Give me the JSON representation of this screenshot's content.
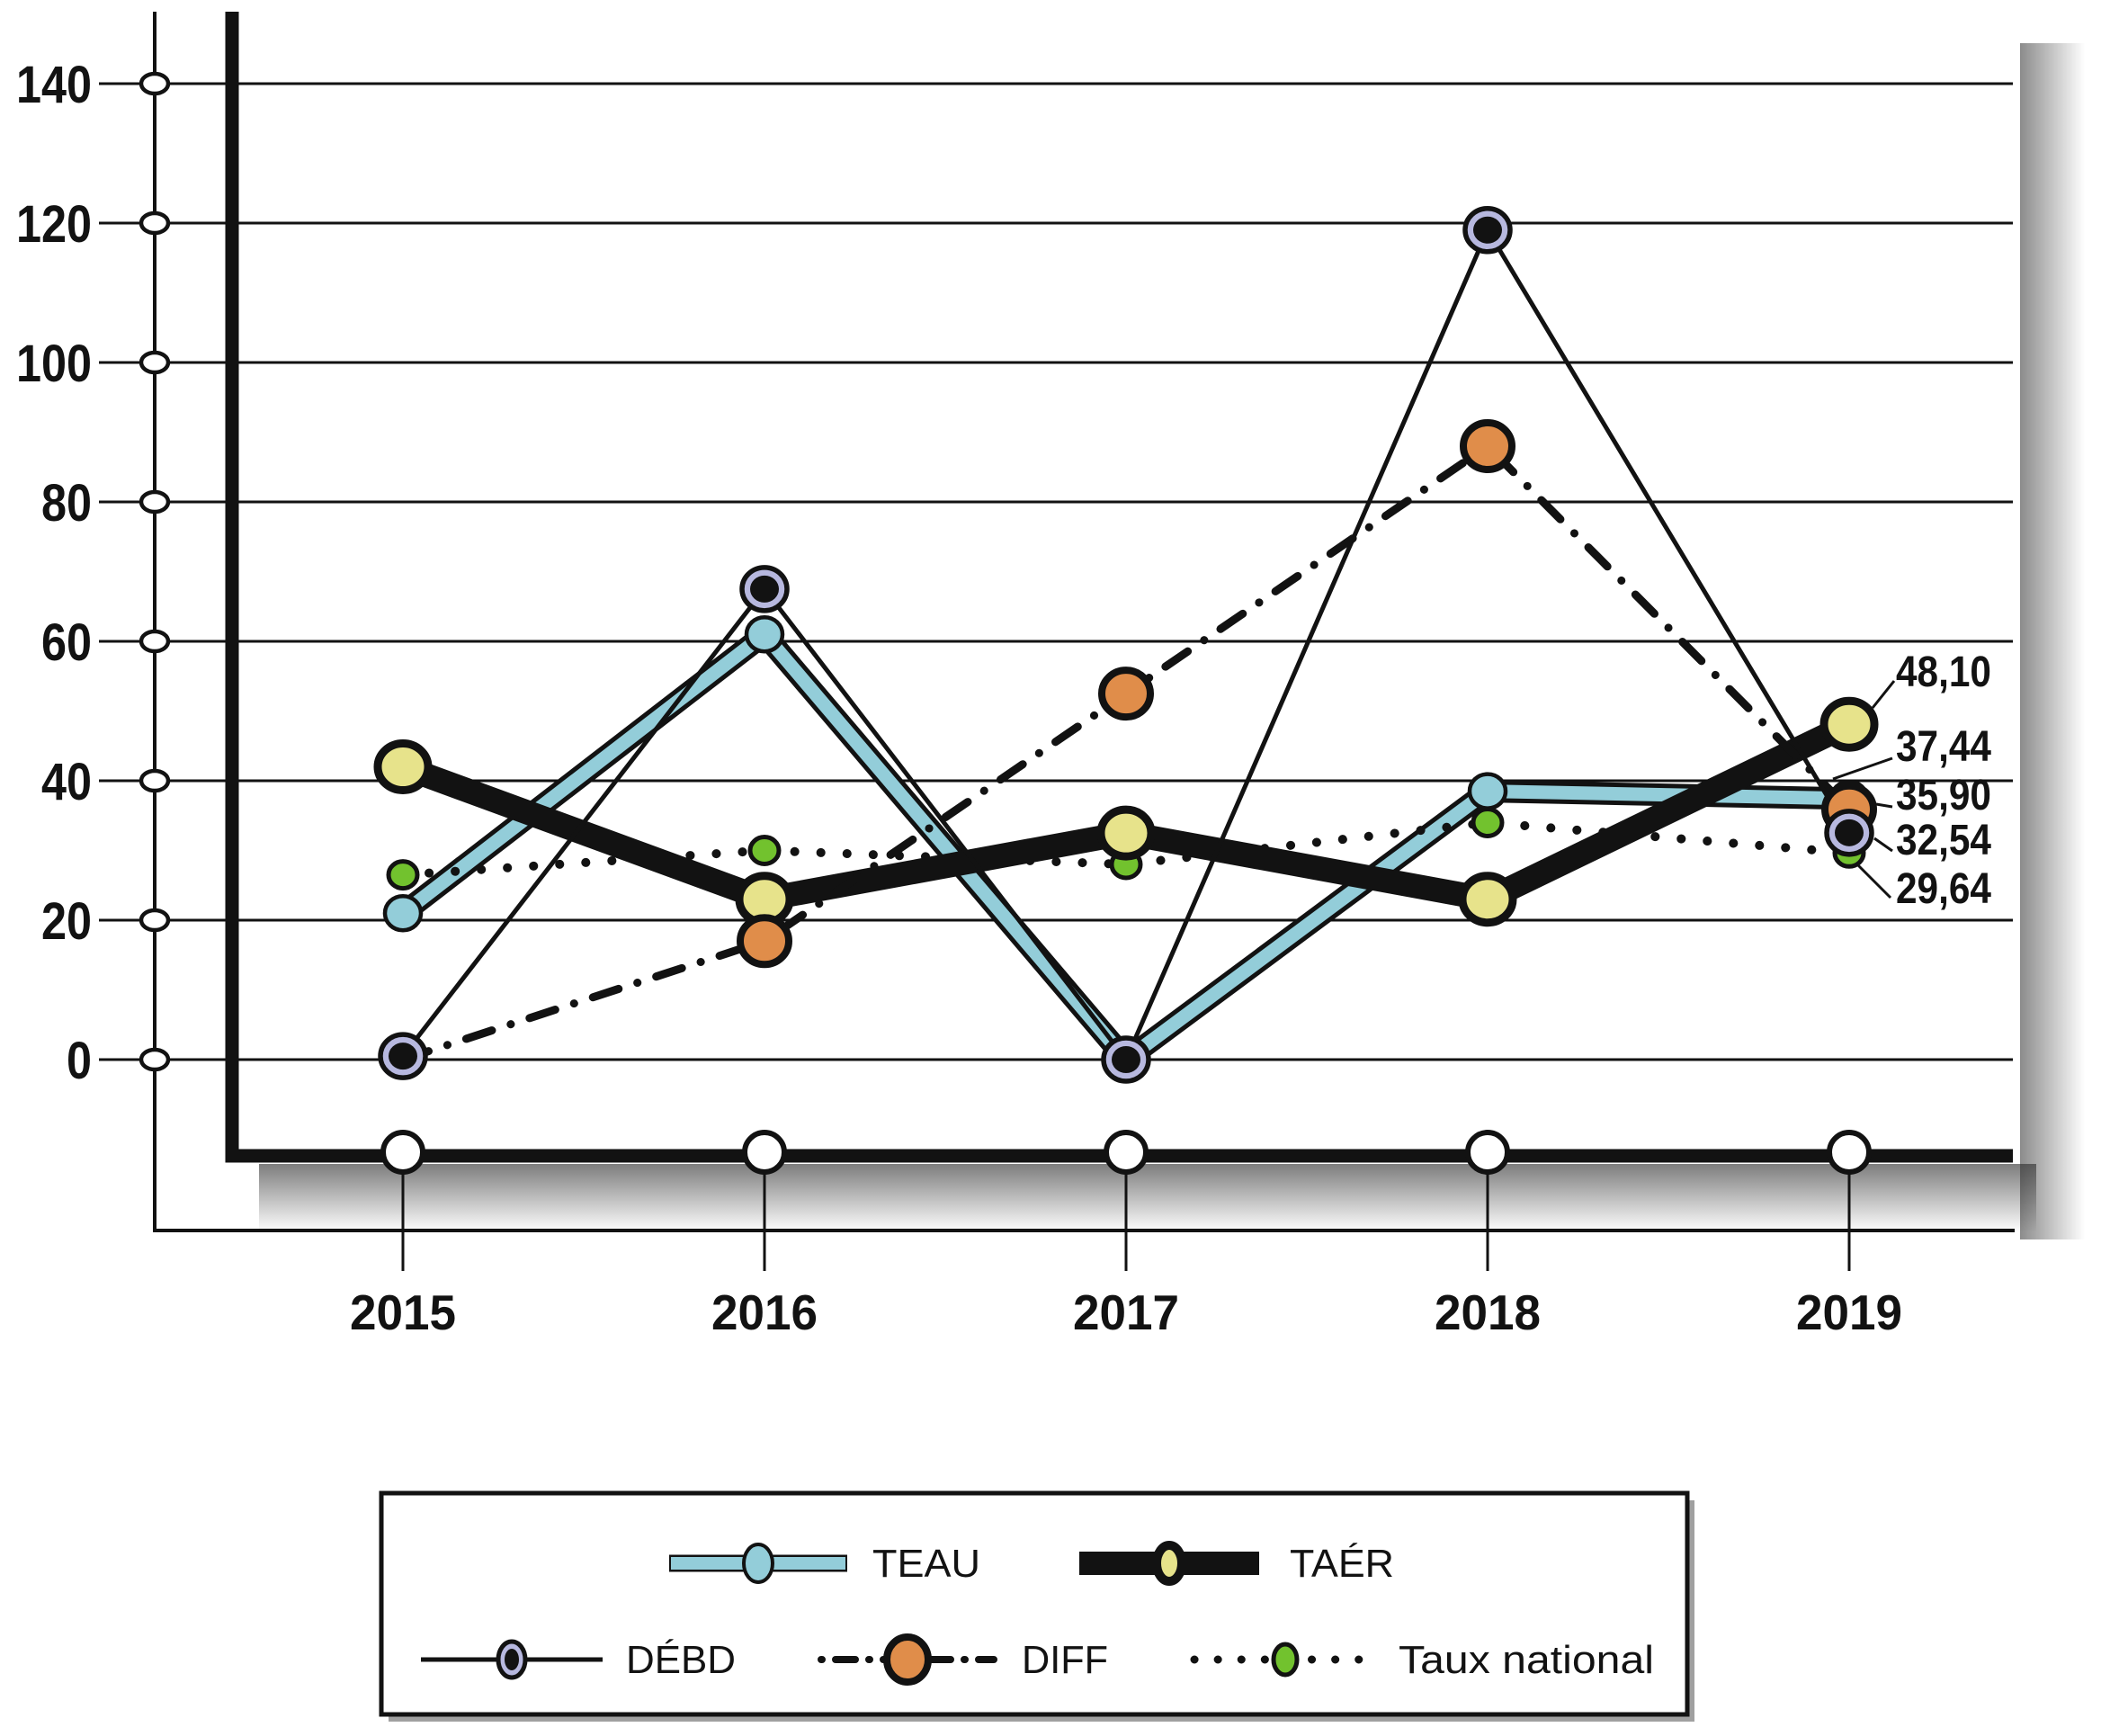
{
  "figure": {
    "background": "#ffffff",
    "ink_color": "#121212",
    "shadow_color": "#3c3c3c"
  },
  "chart_data": {
    "type": "line",
    "title": "",
    "xlabel": "",
    "ylabel": "",
    "x_categories": [
      "2015",
      "2016",
      "2017",
      "2018",
      "2019"
    ],
    "y_ticks": [
      "140",
      "120",
      "100",
      "80",
      "60",
      "40",
      "20",
      "0"
    ],
    "ylim": [
      0,
      150
    ],
    "grid": true,
    "legend_position": "bottom",
    "series": [
      {
        "name": "TEAU",
        "color": "#93cdd9",
        "line_style": "solid-outlined-thick",
        "marker": "blue-ellipse",
        "values": [
          21,
          61,
          0,
          38.5,
          37.44
        ]
      },
      {
        "name": "TAÉR",
        "color": "#e7e38b",
        "line_color": "#121212",
        "line_style": "solid-extra-thick",
        "marker": "yellow-ellipse",
        "values": [
          42,
          23,
          32.5,
          23,
          48.1
        ]
      },
      {
        "name": "DÉBD",
        "color": "#b7b8df",
        "line_color": "#121212",
        "line_style": "solid-thin",
        "marker": "lavender-ellipse-black-dot",
        "values": [
          0.5,
          67.5,
          0,
          119,
          32.54
        ]
      },
      {
        "name": "DIFF",
        "color": "#e08d4a",
        "line_color": "#121212",
        "line_style": "dash-dot",
        "marker": "orange-ellipse",
        "values": [
          0,
          17,
          52.5,
          88,
          35.9
        ]
      },
      {
        "name": "Taux national",
        "color": "#72c22e",
        "line_color": "#121212",
        "line_style": "dotted",
        "marker": "green-ellipse-small",
        "values": [
          26.5,
          30,
          28,
          34,
          29.64
        ]
      }
    ],
    "end_value_labels": [
      {
        "series": "TAÉR",
        "text": "48,10"
      },
      {
        "series": "TEAU",
        "text": "37,44"
      },
      {
        "series": "DIFF",
        "text": "35,90"
      },
      {
        "series": "DÉBD",
        "text": "32,54"
      },
      {
        "series": "Taux national",
        "text": "29,64"
      }
    ],
    "legend_rows": [
      [
        "TEAU",
        "TAÉR"
      ],
      [
        "DÉBD",
        "DIFF",
        "Taux national"
      ]
    ]
  }
}
